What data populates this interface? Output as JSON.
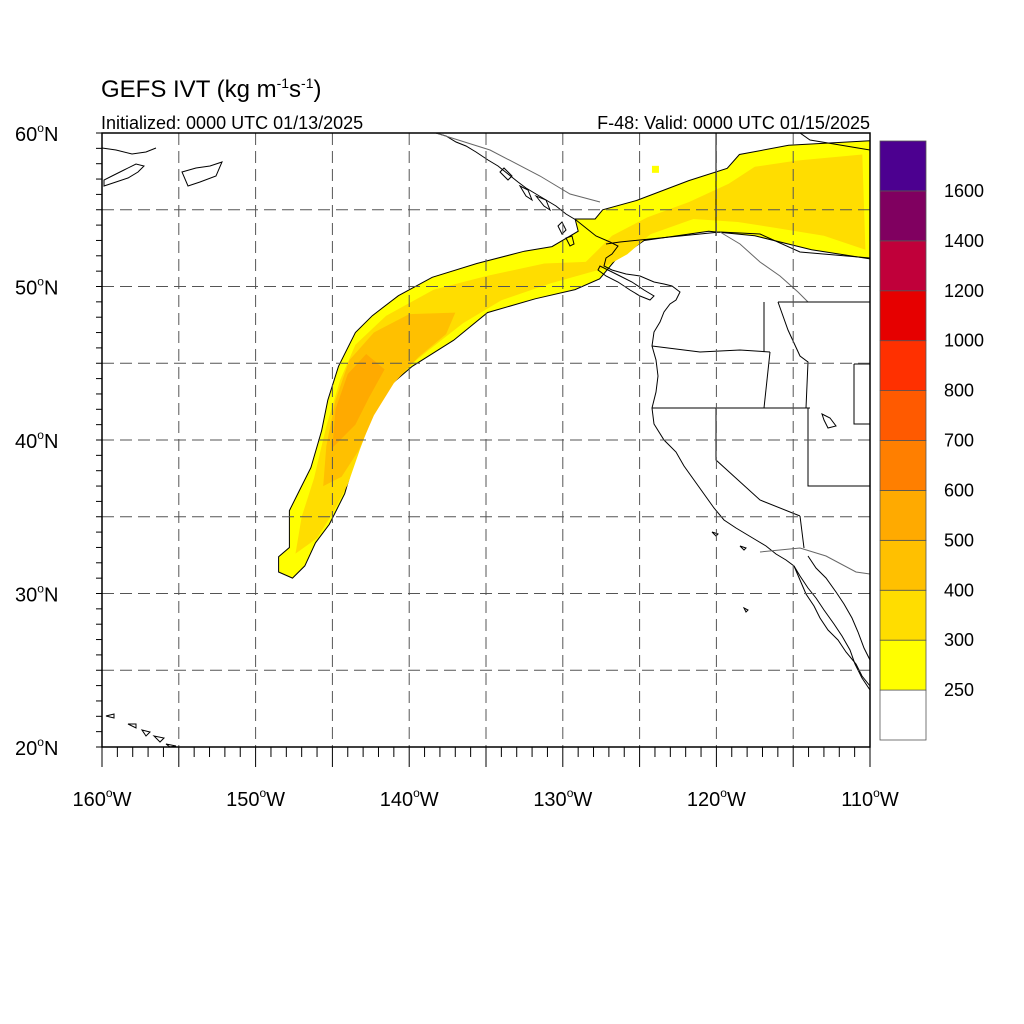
{
  "title": {
    "text": "GEFS IVT (kg m",
    "units_exp1": "-1",
    "units_s": "s",
    "units_exp2": "-1",
    "units_close": ")"
  },
  "subtitle_left": "Initialized: 0000 UTC 01/13/2025",
  "subtitle_right": "F-48: Valid: 0000 UTC 01/15/2025",
  "map": {
    "lon_range": [
      -160,
      -110
    ],
    "lat_range": [
      20,
      60
    ],
    "x_ticks": [
      {
        "lon": -160,
        "deg": "160",
        "hemi": "W"
      },
      {
        "lon": -150,
        "deg": "150",
        "hemi": "W"
      },
      {
        "lon": -140,
        "deg": "140",
        "hemi": "W"
      },
      {
        "lon": -130,
        "deg": "130",
        "hemi": "W"
      },
      {
        "lon": -120,
        "deg": "120",
        "hemi": "W"
      },
      {
        "lon": -110,
        "deg": "110",
        "hemi": "W"
      }
    ],
    "y_ticks": [
      {
        "lat": 60,
        "deg": "60",
        "hemi": "N"
      },
      {
        "lat": 50,
        "deg": "50",
        "hemi": "N"
      },
      {
        "lat": 40,
        "deg": "40",
        "hemi": "N"
      },
      {
        "lat": 30,
        "deg": "30",
        "hemi": "N"
      },
      {
        "lat": 20,
        "deg": "20",
        "hemi": "N"
      }
    ],
    "grid_lons": [
      -155,
      -150,
      -145,
      -140,
      -135,
      -130,
      -125,
      -120,
      -115
    ],
    "grid_lats": [
      25,
      30,
      35,
      40,
      45,
      50,
      55
    ],
    "grid": "dashed",
    "land_outline_color": "#000000",
    "ivt_bands": [
      {
        "level": 250,
        "color": "#ffff00",
        "polygon": [
          [
            -148.5,
            31.4
          ],
          [
            -148.5,
            32.4
          ],
          [
            -147.8,
            33.0
          ],
          [
            -147.8,
            35.4
          ],
          [
            -147.1,
            36.8
          ],
          [
            -146.4,
            38.2
          ],
          [
            -145.7,
            40.6
          ],
          [
            -145.3,
            42.6
          ],
          [
            -144.6,
            44.8
          ],
          [
            -143.5,
            47.0
          ],
          [
            -142.4,
            48.1
          ],
          [
            -140.7,
            49.4
          ],
          [
            -138.5,
            50.6
          ],
          [
            -135.6,
            51.5
          ],
          [
            -132.5,
            52.3
          ],
          [
            -130.7,
            52.6
          ],
          [
            -129.0,
            53.6
          ],
          [
            -129.2,
            54.4
          ],
          [
            -127.9,
            54.4
          ],
          [
            -127.4,
            55.0
          ],
          [
            -125.2,
            55.6
          ],
          [
            -121.8,
            56.9
          ],
          [
            -119.3,
            57.7
          ],
          [
            -118.5,
            58.6
          ],
          [
            -115.3,
            59.2
          ],
          [
            -110.0,
            59.5
          ],
          [
            -110.0,
            51.8
          ],
          [
            -113.8,
            52.4
          ],
          [
            -117.5,
            53.3
          ],
          [
            -120.5,
            53.6
          ],
          [
            -124.7,
            53.0
          ],
          [
            -126.6,
            51.7
          ],
          [
            -127.6,
            50.5
          ],
          [
            -129.2,
            49.8
          ],
          [
            -131.8,
            49.2
          ],
          [
            -134.9,
            48.3
          ],
          [
            -137.1,
            46.5
          ],
          [
            -139.8,
            44.8
          ],
          [
            -141.2,
            43.6
          ],
          [
            -142.5,
            41.8
          ],
          [
            -143.5,
            38.9
          ],
          [
            -144.2,
            36.5
          ],
          [
            -145.2,
            34.5
          ],
          [
            -146.1,
            33.3
          ],
          [
            -146.8,
            31.8
          ],
          [
            -147.6,
            31.0
          ]
        ]
      },
      {
        "level": 300,
        "color": "#ffdd00",
        "polygon": [
          [
            -147.4,
            32.6
          ],
          [
            -147.0,
            35.0
          ],
          [
            -146.2,
            37.5
          ],
          [
            -145.4,
            40.9
          ],
          [
            -144.5,
            43.9
          ],
          [
            -143.5,
            46.2
          ],
          [
            -141.5,
            48.1
          ],
          [
            -138.4,
            49.8
          ],
          [
            -134.9,
            50.7
          ],
          [
            -131.2,
            51.5
          ],
          [
            -128.5,
            51.6
          ],
          [
            -127.7,
            52.4
          ],
          [
            -126.8,
            53.3
          ],
          [
            -124.5,
            54.5
          ],
          [
            -121.8,
            55.5
          ],
          [
            -119.2,
            56.7
          ],
          [
            -117.5,
            57.8
          ],
          [
            -114.8,
            58.2
          ],
          [
            -110.5,
            58.6
          ],
          [
            -110.3,
            52.4
          ],
          [
            -113.0,
            53.3
          ],
          [
            -116.0,
            53.8
          ],
          [
            -118.6,
            54.2
          ],
          [
            -121.5,
            54.4
          ],
          [
            -124.3,
            53.4
          ],
          [
            -125.8,
            52.1
          ],
          [
            -127.6,
            51.1
          ],
          [
            -130.8,
            50.2
          ],
          [
            -134.0,
            49.1
          ],
          [
            -136.5,
            47.6
          ],
          [
            -138.8,
            45.8
          ],
          [
            -140.9,
            44.1
          ],
          [
            -142.3,
            41.8
          ],
          [
            -143.2,
            39.4
          ],
          [
            -144.0,
            37.1
          ],
          [
            -145.0,
            35.2
          ],
          [
            -146.0,
            33.6
          ]
        ]
      },
      {
        "level": 400,
        "color": "#ffc000",
        "polygon": [
          [
            -145.6,
            37.0
          ],
          [
            -145.4,
            39.6
          ],
          [
            -144.8,
            42.6
          ],
          [
            -143.9,
            45.2
          ],
          [
            -142.3,
            47.0
          ],
          [
            -140.0,
            48.2
          ],
          [
            -137.0,
            48.3
          ],
          [
            -137.6,
            46.9
          ],
          [
            -139.4,
            45.4
          ],
          [
            -141.0,
            43.7
          ],
          [
            -142.3,
            41.6
          ],
          [
            -143.3,
            39.3
          ],
          [
            -144.4,
            37.6
          ]
        ]
      },
      {
        "level": 500,
        "color": "#ffaa00",
        "polygon": [
          [
            -145.0,
            39.5
          ],
          [
            -144.8,
            42.0
          ],
          [
            -144.0,
            44.3
          ],
          [
            -142.8,
            45.6
          ],
          [
            -141.6,
            44.6
          ],
          [
            -142.6,
            42.8
          ],
          [
            -143.5,
            41.0
          ]
        ]
      }
    ],
    "ivt_extra_patches": [
      {
        "level": 250,
        "color": "#ffff00",
        "lon": -124.0,
        "lat": 57.6
      }
    ]
  },
  "colorbar": {
    "labels": [
      "1600",
      "1400",
      "1200",
      "1000",
      "800",
      "700",
      "600",
      "500",
      "400",
      "300",
      "250"
    ],
    "colors": [
      "#ffffff",
      "#ffff00",
      "#ffdd00",
      "#ffc000",
      "#ffaa00",
      "#ff7f00",
      "#ff5a00",
      "#ff3000",
      "#e60000",
      "#c0003a",
      "#800060",
      "#4c0090"
    ]
  }
}
